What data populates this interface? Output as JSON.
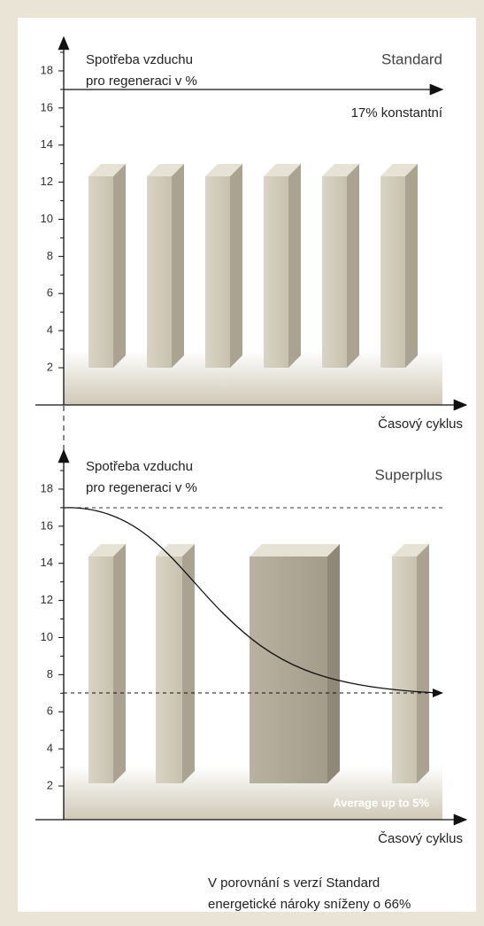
{
  "panels": [
    {
      "ylabel_1": "Spotřeba vzduchu",
      "ylabel_2": "pro regeneraci v %",
      "name": "Standard",
      "note": "17% konstantní",
      "xlabel": "Časový cyklus",
      "yticks": [
        2,
        4,
        6,
        8,
        10,
        12,
        14,
        16,
        18
      ]
    },
    {
      "ylabel_1": "Spotřeba vzduchu",
      "ylabel_2": "pro regeneraci v %",
      "name": "Superplus",
      "note": "Average up to 5%",
      "xlabel": "Časový cyklus",
      "yticks": [
        2,
        4,
        6,
        8,
        10,
        12,
        14,
        16,
        18
      ]
    }
  ],
  "footer": {
    "line_1": "V porovnání s verzí Standard",
    "line_2": "energetické nároky sníženy o 66%"
  }
}
